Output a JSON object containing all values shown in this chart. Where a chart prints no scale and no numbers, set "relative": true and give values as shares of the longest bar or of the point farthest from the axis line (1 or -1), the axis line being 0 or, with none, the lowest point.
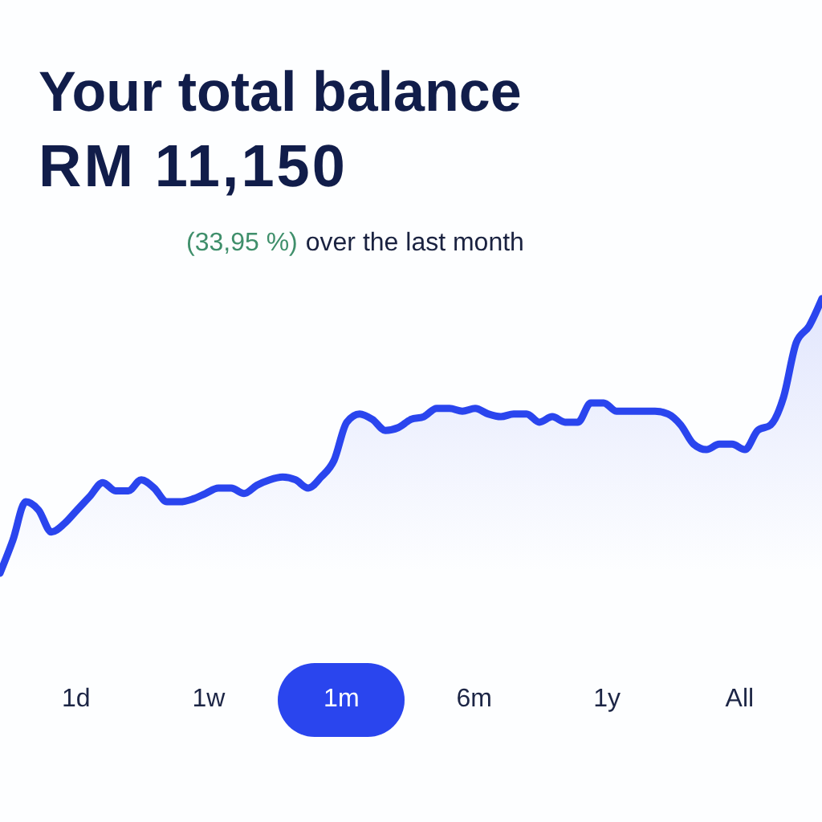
{
  "chart_data": {
    "type": "area",
    "title": "Your total balance",
    "subtitle": "RM 11,150",
    "annotations": [
      "(33,95 %)",
      "over the last month",
      "1d",
      "1w",
      "1m",
      "6m",
      "1y",
      "All"
    ],
    "relative": true,
    "categories": [
      null,
      null,
      null,
      null,
      null,
      null,
      null,
      null,
      null,
      null,
      null,
      null,
      null,
      null,
      null,
      null,
      null,
      null,
      null,
      null,
      null,
      null,
      null,
      null,
      null,
      null,
      null,
      null,
      null,
      null,
      null,
      null,
      null,
      null,
      null,
      null,
      null,
      null,
      null,
      null,
      null,
      null,
      null,
      null,
      null,
      null,
      null,
      null,
      null,
      null,
      null,
      null,
      null,
      null,
      null,
      null,
      null,
      null,
      null,
      null,
      null,
      null,
      null,
      null,
      null
    ],
    "series": [
      {
        "color": "#2a45ee",
        "values": [
          0,
          0.12,
          0.26,
          0.23,
          0.15,
          0.18,
          0.23,
          0.28,
          0.33,
          0.3,
          0.3,
          0.34,
          0.31,
          0.26,
          0.26,
          0.27,
          0.29,
          0.31,
          0.31,
          0.29,
          0.32,
          0.34,
          0.35,
          0.34,
          0.31,
          0.35,
          0.41,
          0.55,
          0.58,
          0.56,
          0.52,
          0.53,
          0.56,
          0.57,
          0.6,
          0.6,
          0.59,
          0.6,
          0.58,
          0.57,
          0.58,
          0.58,
          0.55,
          0.57,
          0.55,
          0.55,
          0.62,
          0.62,
          0.59,
          0.59,
          0.59,
          0.59,
          0.58,
          0.54,
          0.47,
          0.45,
          0.47,
          0.47,
          0.45,
          0.52,
          0.54,
          0.64,
          0.84,
          0.9,
          1
        ]
      }
    ]
  }
}
